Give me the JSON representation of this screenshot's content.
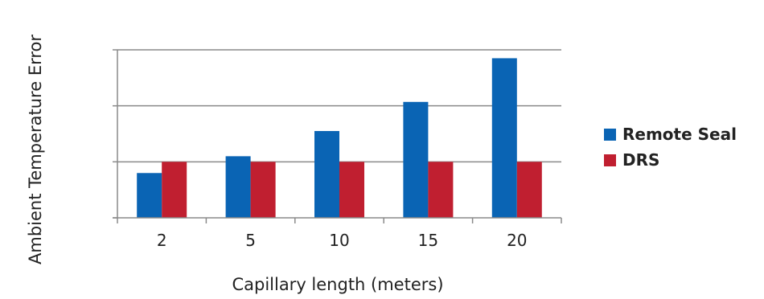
{
  "chart_data": {
    "type": "bar",
    "title": "",
    "xlabel": "Capillary length (meters)",
    "ylabel": "Ambient Temperature Error",
    "categories": [
      "2",
      "5",
      "10",
      "15",
      "20"
    ],
    "series": [
      {
        "name": "Remote Seal",
        "values": [
          0.8,
          1.1,
          1.55,
          2.07,
          2.85
        ],
        "color": "#0a64b4"
      },
      {
        "name": "DRS",
        "values": [
          1.0,
          1.0,
          1.0,
          1.0,
          1.0
        ],
        "color": "#c01f30"
      }
    ],
    "ylim": [
      0,
      3
    ],
    "grid": true,
    "legend": "right",
    "y_tick_labels_shown": false
  }
}
